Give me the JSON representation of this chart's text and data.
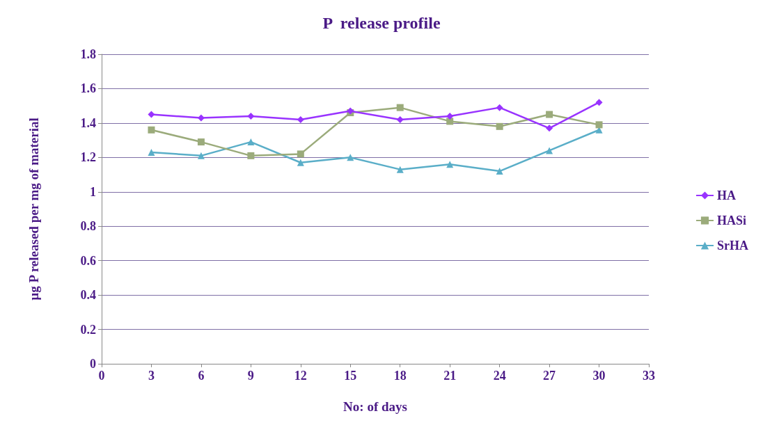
{
  "chart_data": {
    "type": "line",
    "title": "P  release profile",
    "xlabel": "No: of days",
    "ylabel": "µg P released per mg of material",
    "x": [
      3,
      6,
      9,
      12,
      15,
      18,
      21,
      24,
      27,
      30
    ],
    "series": [
      {
        "name": "HA",
        "color": "#9933ff",
        "marker": "diamond",
        "values": [
          1.45,
          1.43,
          1.44,
          1.42,
          1.47,
          1.42,
          1.44,
          1.49,
          1.37,
          1.52
        ]
      },
      {
        "name": "HASi",
        "color": "#9bab7b",
        "marker": "square",
        "values": [
          1.36,
          1.29,
          1.21,
          1.22,
          1.46,
          1.49,
          1.41,
          1.38,
          1.45,
          1.39
        ]
      },
      {
        "name": "SrHA",
        "color": "#5aaec8",
        "marker": "triangle",
        "values": [
          1.23,
          1.21,
          1.29,
          1.17,
          1.2,
          1.13,
          1.16,
          1.12,
          1.24,
          1.36
        ]
      }
    ],
    "xlim": [
      0,
      33
    ],
    "xticks": [
      0,
      3,
      6,
      9,
      12,
      15,
      18,
      21,
      24,
      27,
      30,
      33
    ],
    "ylim": [
      0,
      1.8
    ],
    "yticks": [
      0,
      0.2,
      0.4,
      0.6,
      0.8,
      1,
      1.2,
      1.4,
      1.6,
      1.8
    ],
    "grid": "y",
    "legend": "right"
  }
}
